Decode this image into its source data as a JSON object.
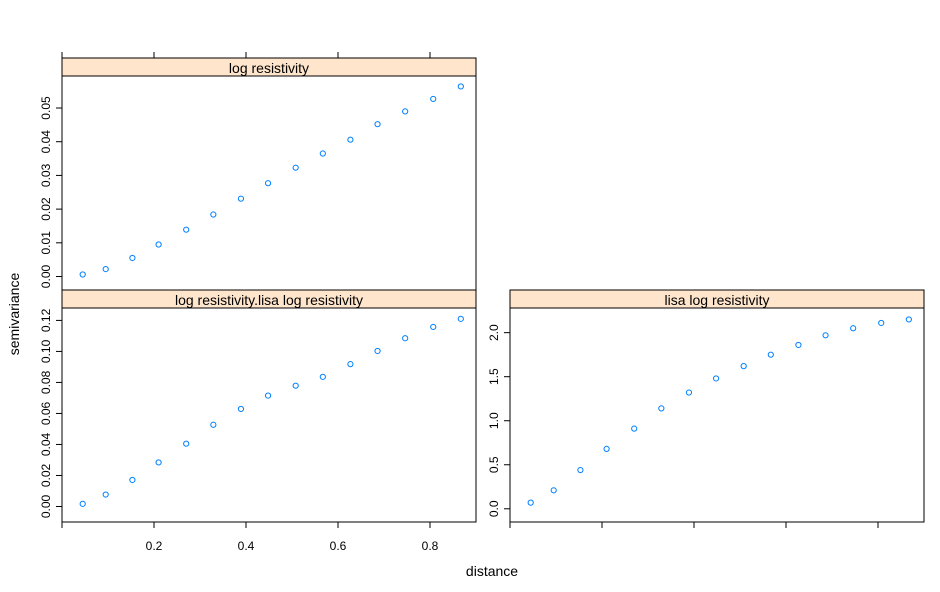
{
  "colors": {
    "strip": "#ffe5cc",
    "points": "#0080ff",
    "frame": "#000000",
    "background": "#ffffff"
  },
  "chart_data": {
    "type": "scatter",
    "xlabel": "distance",
    "ylabel": "semivariance",
    "xlim": [
      0.0,
      0.9
    ],
    "x_ticks": [
      0.2,
      0.4,
      0.6,
      0.8
    ],
    "x_tick_labels": [
      "0.2",
      "0.4",
      "0.6",
      "0.8"
    ],
    "panels": [
      {
        "title": "log resistivity",
        "ylim": [
          -0.004,
          0.0595
        ],
        "y_ticks": [
          0,
          0.01,
          0.02,
          0.03,
          0.04,
          0.05
        ],
        "y_tick_labels": [
          "0.00",
          "0.01",
          "0.02",
          "0.03",
          "0.04",
          "0.05"
        ],
        "x": [
          0.045,
          0.095,
          0.153,
          0.21,
          0.27,
          0.329,
          0.389,
          0.448,
          0.508,
          0.567,
          0.627,
          0.686,
          0.746,
          0.807,
          0.867
        ],
        "y": [
          0.0006,
          0.0022,
          0.0055,
          0.0095,
          0.0139,
          0.0184,
          0.0231,
          0.0277,
          0.0323,
          0.0365,
          0.0406,
          0.0452,
          0.049,
          0.0527,
          0.0564
        ]
      },
      {
        "title": "log resistivity.lisa log resistivity",
        "ylim": [
          -0.01,
          0.128
        ],
        "y_ticks": [
          0,
          0.02,
          0.04,
          0.06,
          0.08,
          0.1,
          0.12
        ],
        "y_tick_labels": [
          "0.00",
          "0.02",
          "0.04",
          "0.06",
          "0.08",
          "0.10",
          "0.12"
        ],
        "x": [
          0.045,
          0.095,
          0.153,
          0.21,
          0.27,
          0.329,
          0.389,
          0.448,
          0.508,
          0.567,
          0.627,
          0.686,
          0.746,
          0.807,
          0.867
        ],
        "y": [
          0.0017,
          0.0077,
          0.0171,
          0.0284,
          0.0405,
          0.0527,
          0.0629,
          0.0715,
          0.0779,
          0.0836,
          0.0918,
          0.1003,
          0.1085,
          0.1158,
          0.121
        ]
      },
      {
        "title": "lisa log resistivity",
        "ylim": [
          -0.15,
          2.28
        ],
        "y_ticks": [
          0,
          0.5,
          1.0,
          1.5,
          2.0
        ],
        "y_tick_labels": [
          "0.0",
          "0.5",
          "1.0",
          "1.5",
          "2.0"
        ],
        "x": [
          0.045,
          0.095,
          0.153,
          0.21,
          0.27,
          0.329,
          0.389,
          0.448,
          0.508,
          0.567,
          0.627,
          0.686,
          0.746,
          0.807,
          0.867
        ],
        "y": [
          0.07,
          0.21,
          0.44,
          0.68,
          0.91,
          1.14,
          1.32,
          1.48,
          1.62,
          1.75,
          1.86,
          1.97,
          2.05,
          2.11,
          2.15
        ]
      }
    ]
  }
}
